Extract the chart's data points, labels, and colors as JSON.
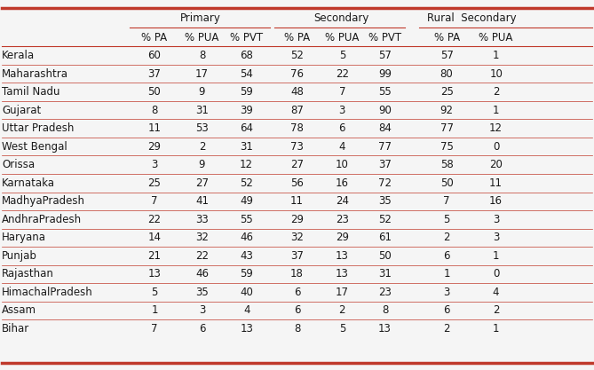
{
  "col_groups": [
    {
      "label": "Primary",
      "span": [
        0,
        2
      ]
    },
    {
      "label": "Secondary",
      "span": [
        3,
        5
      ]
    },
    {
      "label": "Rural  Secondary",
      "span": [
        6,
        7
      ]
    }
  ],
  "sub_labels": [
    "% PA",
    "% PUA",
    "% PVT",
    "% PA",
    "% PUA",
    "% PVT",
    "% PA",
    "% PUA"
  ],
  "states": [
    "Kerala",
    "Maharashtra",
    "Tamil Nadu",
    "Gujarat",
    "Uttar Pradesh",
    "West Bengal",
    "Orissa",
    "Karnataka",
    "MadhyaPradesh",
    "AndhraPradesh",
    "Haryana",
    "Punjab",
    "Rajasthan",
    "HimachalPradesh",
    "Assam",
    "Bihar"
  ],
  "data": [
    [
      60,
      8,
      68,
      52,
      5,
      57,
      57,
      1
    ],
    [
      37,
      17,
      54,
      76,
      22,
      99,
      80,
      10
    ],
    [
      50,
      9,
      59,
      48,
      7,
      55,
      25,
      2
    ],
    [
      8,
      31,
      39,
      87,
      3,
      90,
      92,
      1
    ],
    [
      11,
      53,
      64,
      78,
      6,
      84,
      77,
      12
    ],
    [
      29,
      2,
      31,
      73,
      4,
      77,
      75,
      0
    ],
    [
      3,
      9,
      12,
      27,
      10,
      37,
      58,
      20
    ],
    [
      25,
      27,
      52,
      56,
      16,
      72,
      50,
      11
    ],
    [
      7,
      41,
      49,
      11,
      24,
      35,
      7,
      16
    ],
    [
      22,
      33,
      55,
      29,
      23,
      52,
      5,
      3
    ],
    [
      14,
      32,
      46,
      32,
      29,
      61,
      2,
      3
    ],
    [
      21,
      22,
      43,
      37,
      13,
      50,
      6,
      1
    ],
    [
      13,
      46,
      59,
      18,
      13,
      31,
      1,
      0
    ],
    [
      5,
      35,
      40,
      6,
      17,
      23,
      3,
      4
    ],
    [
      1,
      3,
      4,
      6,
      2,
      8,
      6,
      2
    ],
    [
      7,
      6,
      13,
      8,
      5,
      13,
      2,
      1
    ]
  ],
  "row_line_color": "#c0392b",
  "top_border_color": "#c0392b",
  "bottom_border_color": "#c0392b",
  "text_color": "#1a1a1a",
  "font_size": 8.5,
  "header_font_size": 8.5,
  "fig_bg": "#f5f5f5"
}
